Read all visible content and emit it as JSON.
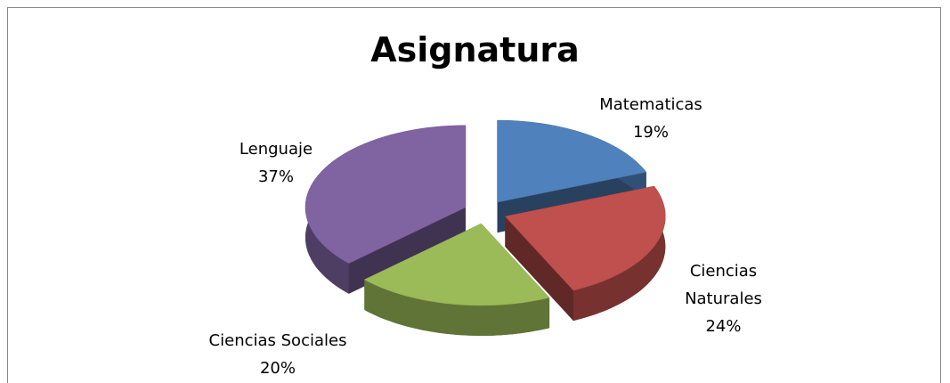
{
  "chart_data": {
    "type": "pie3d",
    "title": "Asignatura",
    "categories": [
      "Matematicas",
      "Ciencias Naturales",
      "Ciencias Sociales",
      "Lenguaje"
    ],
    "values": [
      19,
      24,
      20,
      37
    ],
    "value_labels": [
      "19%",
      "24%",
      "20%",
      "37%"
    ],
    "colors": [
      "#4f81bd",
      "#c0504d",
      "#9bbb59",
      "#8064a2"
    ]
  }
}
